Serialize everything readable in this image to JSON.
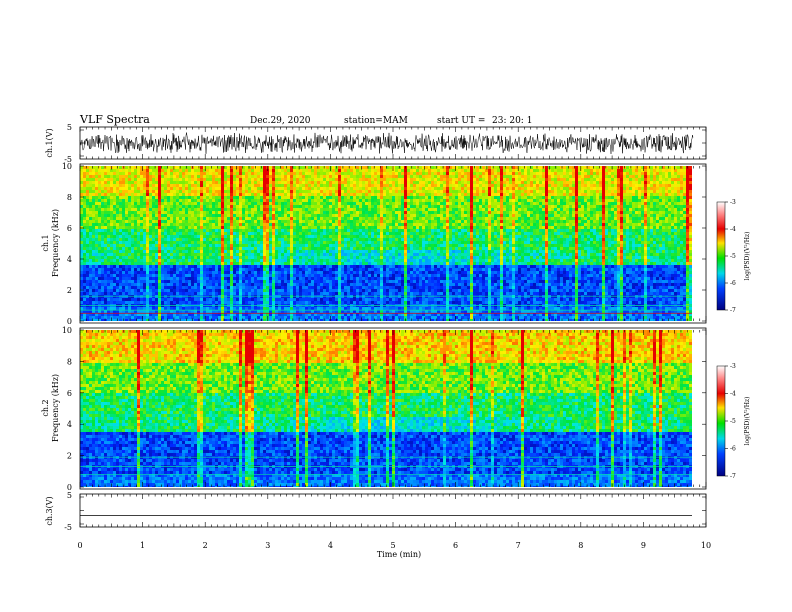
{
  "header": {
    "title": "VLF Spectra",
    "date": "Dec.29, 2020",
    "station": "station=MAM",
    "start": "start UT =",
    "start_time": "23: 20: 1"
  },
  "chart_data": [
    {
      "type": "line",
      "name": "ch1-waveform",
      "ylabel": "ch.1(V)",
      "ylim": [
        -5,
        5
      ],
      "yticks": [
        5,
        -5
      ],
      "xlim": [
        0,
        10
      ],
      "noise_amplitude": 3.5
    },
    {
      "type": "heatmap",
      "name": "ch1-spectrogram",
      "ylabel_lines": [
        "ch.1",
        "Frequency (kHz)"
      ],
      "ylim": [
        0,
        10
      ],
      "yticks": [
        0,
        2,
        4,
        6,
        8,
        10
      ],
      "xlim": [
        0,
        9.8
      ],
      "colorbar": {
        "ticks": [
          -3,
          -4,
          -5,
          -6,
          -7
        ],
        "label": "log(PSD)(V²/Hz)"
      }
    },
    {
      "type": "heatmap",
      "name": "ch2-spectrogram",
      "ylabel_lines": [
        "ch.2",
        "Frequency (kHz)"
      ],
      "ylim": [
        0,
        10
      ],
      "yticks": [
        0,
        2,
        4,
        6,
        8,
        10
      ],
      "xlim": [
        0,
        9.8
      ],
      "colorbar": {
        "ticks": [
          -3,
          -4,
          -5,
          -6,
          -7
        ],
        "label": "log(PSD)(V²/Hz)"
      }
    },
    {
      "type": "line",
      "name": "ch3-waveform",
      "ylabel": "ch.3(V)",
      "ylim": [
        -5,
        5
      ],
      "yticks": [
        5,
        -5
      ],
      "xlim": [
        0,
        10
      ],
      "y": [
        -1.5,
        -1.5
      ]
    }
  ],
  "xaxis": {
    "label": "Time (min)",
    "ticks": [
      0,
      1,
      2,
      3,
      4,
      5,
      6,
      7,
      8,
      9,
      10
    ]
  }
}
